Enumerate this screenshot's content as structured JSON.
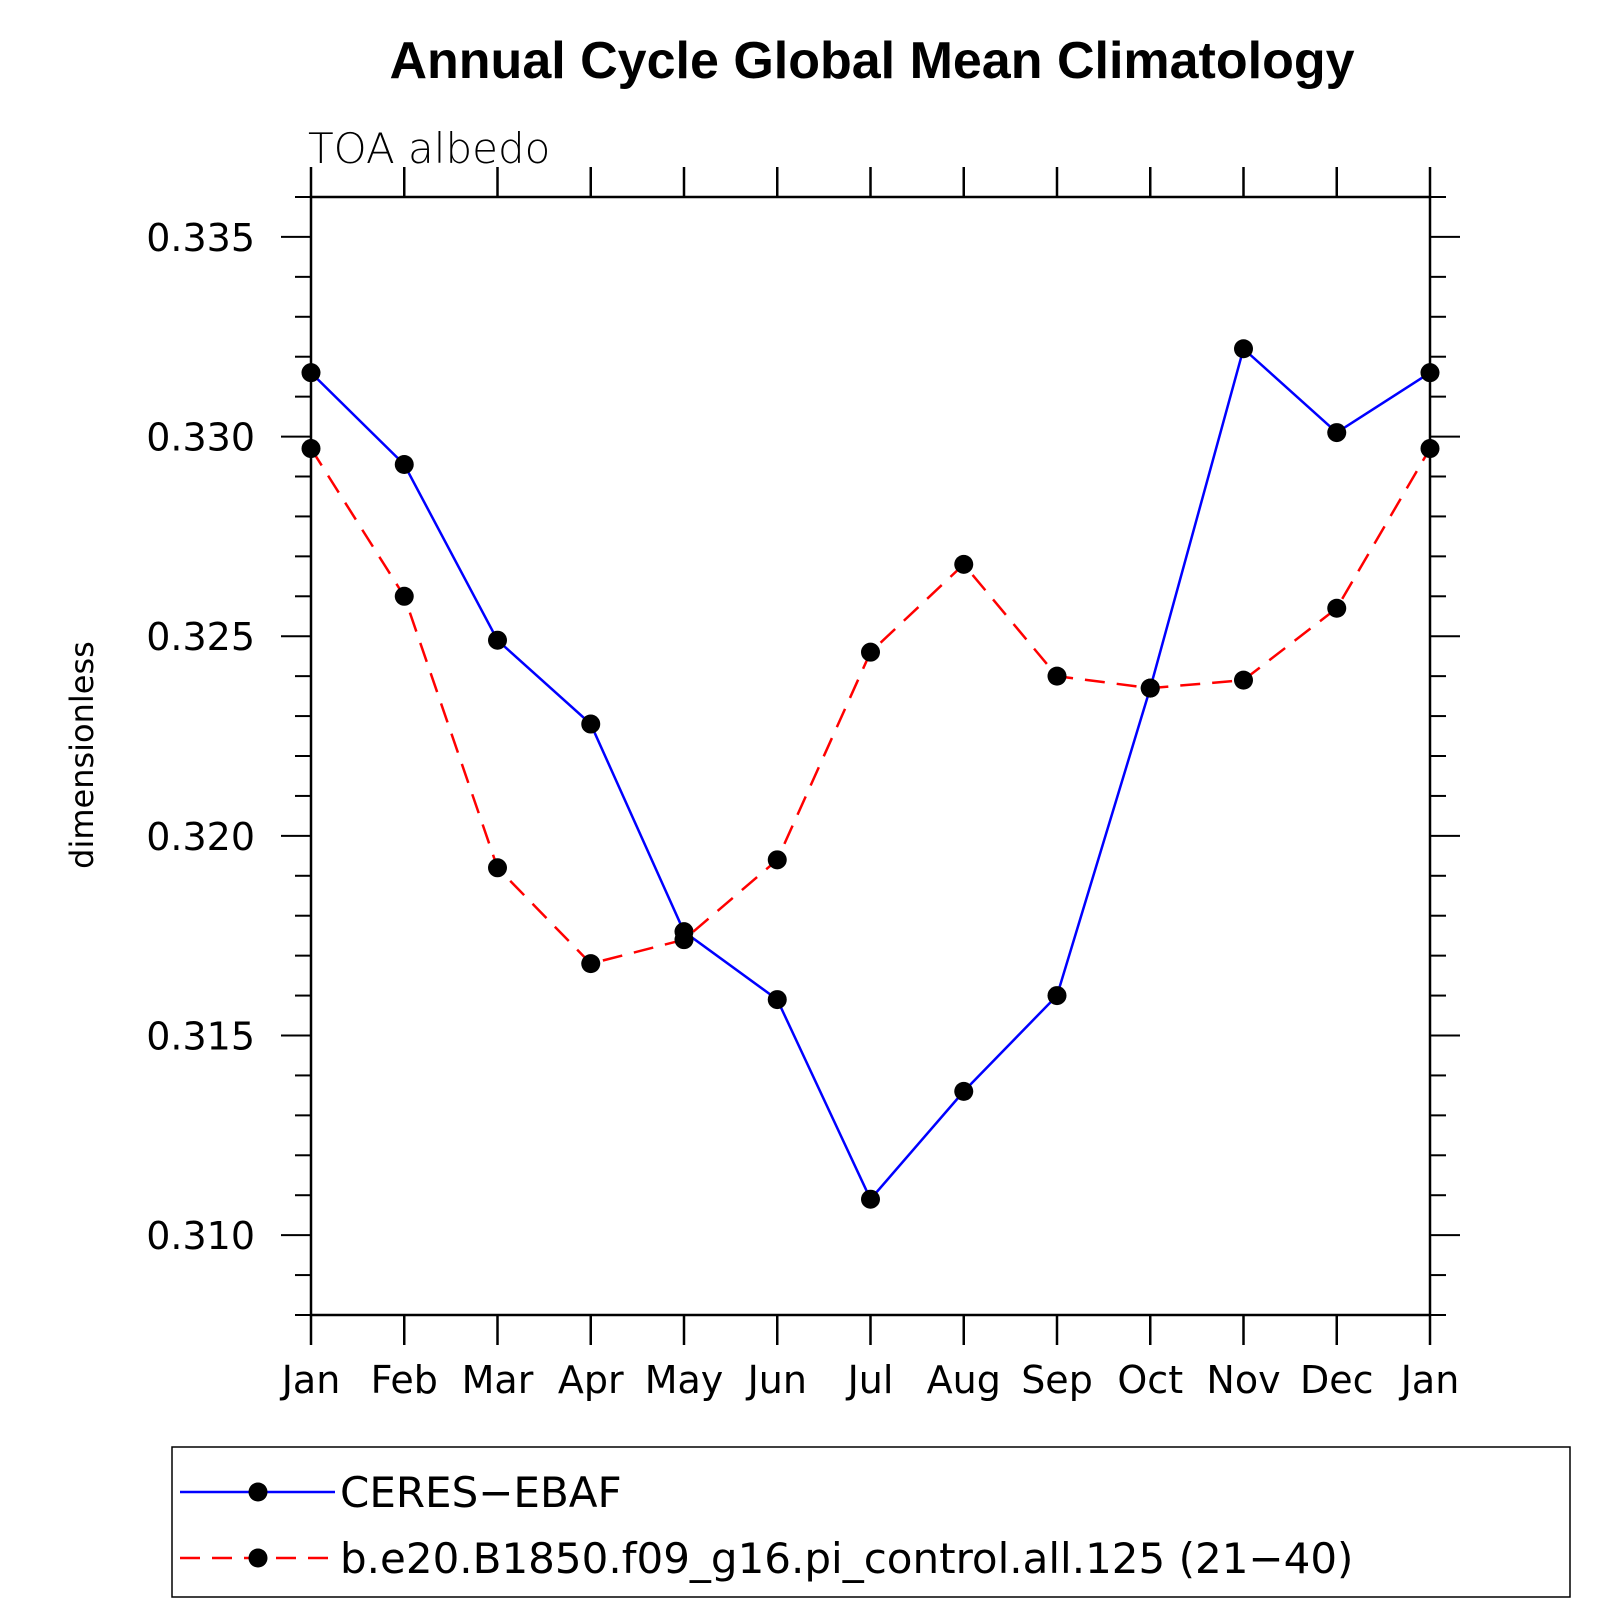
{
  "chart_data": {
    "type": "line",
    "title": "Annual Cycle Global Mean Climatology",
    "subtitle": "TOA albedo",
    "xlabel": "",
    "ylabel": "dimensionless",
    "categories": [
      "Jan",
      "Feb",
      "Mar",
      "Apr",
      "May",
      "Jun",
      "Jul",
      "Aug",
      "Sep",
      "Oct",
      "Nov",
      "Dec",
      "Jan"
    ],
    "ylim": [
      0.308,
      0.336
    ],
    "yticks": [
      "0.310",
      "0.315",
      "0.320",
      "0.325",
      "0.330",
      "0.335"
    ],
    "ytick_values": [
      0.31,
      0.315,
      0.32,
      0.325,
      0.33,
      0.335
    ],
    "grid": false,
    "legend_position": "bottom",
    "series": [
      {
        "name": "CERES−EBAF",
        "color": "#0000ff",
        "line_style": "solid",
        "marker": "filled-circle",
        "values": [
          0.3316,
          0.3293,
          0.3249,
          0.3228,
          0.3176,
          0.3159,
          0.3109,
          0.3136,
          0.316,
          0.3237,
          0.3322,
          0.3301,
          0.3316
        ]
      },
      {
        "name": "b.e20.B1850.f09_g16.pi_control.all.125 (21−40)",
        "color": "#ff0000",
        "line_style": "dashed",
        "marker": "filled-circle",
        "values": [
          0.3297,
          0.326,
          0.3192,
          0.3168,
          0.3174,
          0.3194,
          0.3246,
          0.3268,
          0.324,
          0.3237,
          0.3239,
          0.3257,
          0.3297
        ]
      }
    ]
  }
}
